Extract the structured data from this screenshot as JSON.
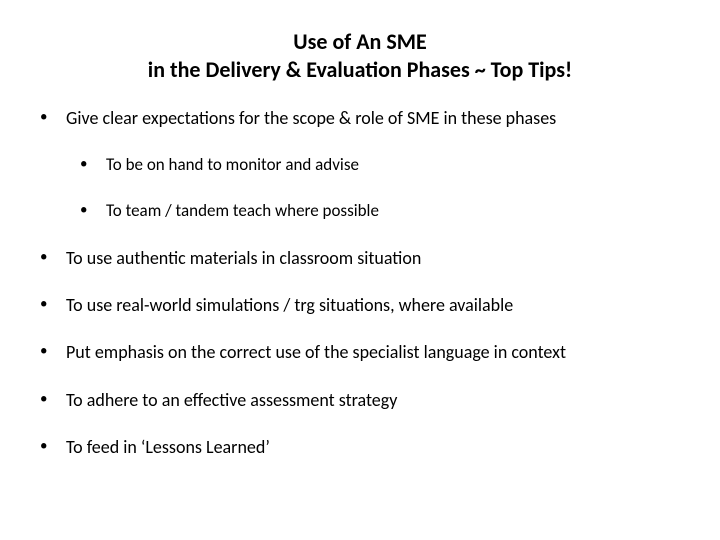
{
  "title_line1": "Use of An SME",
  "title_line2": "in the Delivery & Evaluation Phases ~ Top Tips!",
  "bullets": [
    {
      "text": "Give clear expectations for the scope & role of SME in these phases",
      "level": 0
    },
    {
      "text": "To be on hand to monitor and advise",
      "level": 1
    },
    {
      "text": "To team / tandem teach where possible",
      "level": 1
    },
    {
      "text": "To use authentic materials in classroom situation",
      "level": 0
    },
    {
      "text": "To use real-world simulations / trg situations, where available",
      "level": 0
    },
    {
      "text": "Put emphasis on the correct use of the specialist language in context",
      "level": 0
    },
    {
      "text": "To adhere to an effective assessment strategy",
      "level": 0
    },
    {
      "text": "To feed in ‘Lessons Learned’",
      "level": 0
    }
  ],
  "colors": {
    "background": "#ffffff",
    "text": "#000000"
  },
  "typography": {
    "title_fontsize": 22,
    "title_weight": 700,
    "body_fontsize": 18,
    "nested_fontsize": 17,
    "font_family": "Calibri"
  }
}
